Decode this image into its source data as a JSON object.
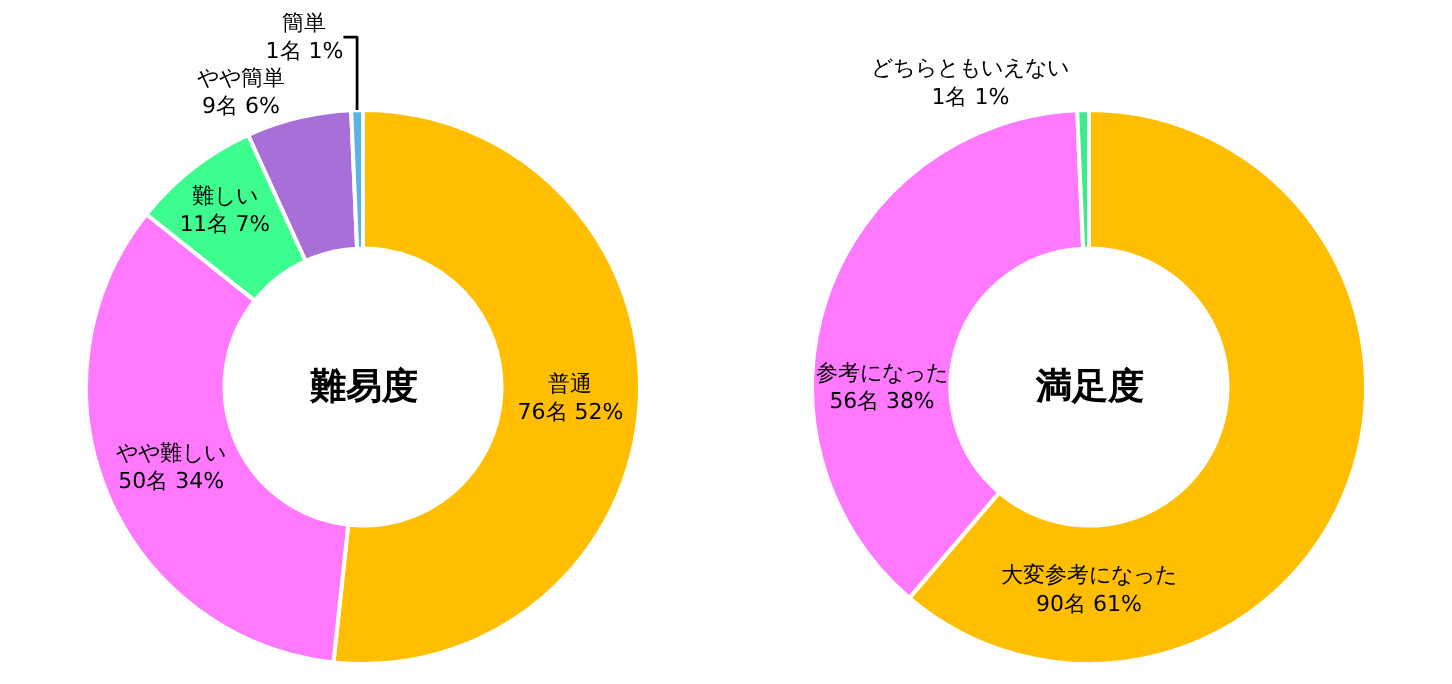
{
  "chart_data": [
    {
      "type": "donut",
      "title": "難易度",
      "categories": [
        "普通",
        "やや難しい",
        "難しい",
        "やや簡単",
        "簡単"
      ],
      "values": [
        76,
        50,
        11,
        9,
        1
      ],
      "colors": [
        "#ffbf00",
        "#ff79ff",
        "#3dfd8f",
        "#a96fd8",
        "#5ab4e8"
      ],
      "value_labels": [
        "76名 52%",
        "50名 34%",
        "11名 7%",
        "9名 6%",
        "1名 1%"
      ],
      "legend": false
    },
    {
      "type": "donut",
      "title": "満足度",
      "categories": [
        "大変参考になった",
        "参考になった",
        "どちらともいえない"
      ],
      "values": [
        90,
        56,
        1
      ],
      "colors": [
        "#ffbf00",
        "#ff79ff",
        "#3dea8c"
      ],
      "value_labels": [
        "90名 61%",
        "56名 38%",
        "1名 1%"
      ],
      "legend": false
    }
  ]
}
